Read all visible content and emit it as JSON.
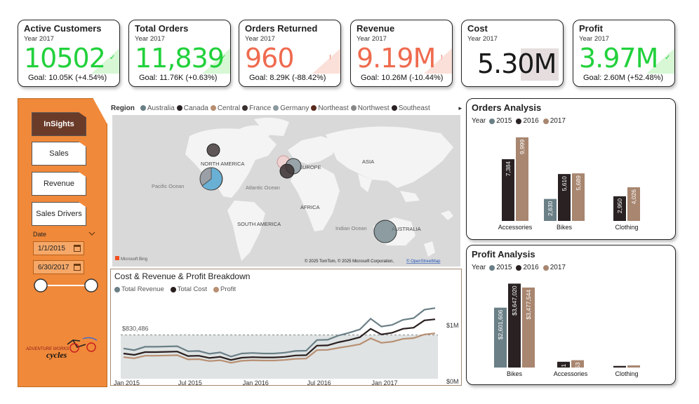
{
  "kpis": [
    {
      "title": "Active Customers",
      "year": "Year 2017",
      "value": "10502",
      "goal": "Goal: 10.05K (+4.54%)",
      "color": "#22d13c",
      "shade": "#d7f7d5",
      "mark": "✓"
    },
    {
      "title": "Total Orders",
      "year": "Year 2017",
      "value": "11,839",
      "goal": "Goal: 11.76K (+0.63%)",
      "color": "#22d13c",
      "shade": "#d7f7d5",
      "mark": "✓"
    },
    {
      "title": "Orders Returned",
      "year": "Year 2017",
      "value": "960",
      "goal": "Goal: 8.29K (-88.42%)",
      "color": "#ef6b4f",
      "shade": "#fbe0d9",
      "mark": "!"
    },
    {
      "title": "Revenue",
      "year": "Year 2017",
      "value": "9.19M",
      "goal": "Goal: 10.26M (-10.44%)",
      "color": "#ef6b4f",
      "shade": "#fbe0d9",
      "mark": "!"
    },
    {
      "title": "Cost",
      "year": "Year 2017",
      "value": "5.30M",
      "goal": "",
      "color": "#1a1a1a",
      "shade": "#e6dede",
      "mark": ""
    },
    {
      "title": "Profit",
      "year": "Year 2017",
      "value": "3.97M",
      "goal": "Goal: 2.60M (+52.48%)",
      "color": "#22d13c",
      "shade": "#d7f7d5",
      "mark": "✓"
    }
  ],
  "nav": {
    "items": [
      "InSights",
      "Sales",
      "Revenue",
      "Sales Drivers"
    ],
    "active": "InSights",
    "date_label": "Date",
    "start_date": "1/1/2015",
    "end_date": "6/30/2017",
    "logo_line1": "ADVENTURE WORKS",
    "logo_line2": "cycles"
  },
  "map": {
    "legend_title": "Region",
    "regions": [
      {
        "name": "Australia",
        "color": "#6a7f86"
      },
      {
        "name": "Canada",
        "color": "#2a2222"
      },
      {
        "name": "Central",
        "color": "#b88f72"
      },
      {
        "name": "France",
        "color": "#3a3030"
      },
      {
        "name": "Germany",
        "color": "#8c9aa0"
      },
      {
        "name": "Northeast",
        "color": "#5a2a1e"
      },
      {
        "name": "Northwest",
        "color": "#888888"
      },
      {
        "name": "Southeast",
        "color": "#2a2222"
      }
    ],
    "labels": {
      "north_america": "NORTH AMERICA",
      "europe": "EUROPE",
      "asia": "ASIA",
      "africa": "AFRICA",
      "south_america": "SOUTH AMERICA",
      "australia": "AUSTRALIA",
      "pacific": "Pacific Ocean",
      "atlantic": "Atlantic Ocean",
      "indian": "Indian Ocean"
    },
    "bing": "Microsoft Bing",
    "copyright": "© 2025 TomTom, © 2025 Microsoft Corporation,",
    "osm": "© OpenStreetMap"
  },
  "breakdown": {
    "title": "Cost & Revenue & Profit Breakdown",
    "series": [
      {
        "name": "Total Revenue",
        "color": "#6a7f86"
      },
      {
        "name": "Total Cost",
        "color": "#2a1f1f"
      },
      {
        "name": "Profit",
        "color": "#b88f72"
      }
    ],
    "reference_label": "$830,486",
    "y_labels": [
      "$1M",
      "$0M"
    ],
    "x_labels": [
      "Jan 2015",
      "Jul 2015",
      "Jan 2016",
      "Jul 2016",
      "Jan 2017"
    ]
  },
  "orders_analysis": {
    "title": "Orders Analysis",
    "year_label": "Year",
    "years": [
      {
        "name": "2015",
        "color": "#6a7f86"
      },
      {
        "name": "2016",
        "color": "#2a2222"
      },
      {
        "name": "2017",
        "color": "#a88670"
      }
    ]
  },
  "profit_analysis": {
    "title": "Profit Analysis",
    "year_label": "Year",
    "years": [
      {
        "name": "2015",
        "color": "#6a7f86"
      },
      {
        "name": "2016",
        "color": "#2a2222"
      },
      {
        "name": "2017",
        "color": "#a88670"
      }
    ]
  },
  "chart_data": [
    {
      "type": "bar",
      "title": "Orders Analysis",
      "categories": [
        "Accessories",
        "Bikes",
        "Clothing"
      ],
      "series": [
        {
          "name": "2015",
          "values": [
            null,
            2630,
            null
          ]
        },
        {
          "name": "2016",
          "values": [
            7384,
            5610,
            2950
          ]
        },
        {
          "name": "2017",
          "values": [
            9999,
            5689,
            4026
          ]
        }
      ],
      "labels": [
        [
          "",
          "7,384",
          "9,999"
        ],
        [
          "2,630",
          "5,610",
          "5,689"
        ],
        [
          "",
          "2,950",
          "4,026"
        ]
      ],
      "ylim": [
        0,
        10000
      ]
    },
    {
      "type": "bar",
      "title": "Profit Analysis",
      "categories": [
        "Bikes",
        "Accessories",
        "Clothing"
      ],
      "series": [
        {
          "name": "2015",
          "values": [
            2601606,
            null,
            null
          ]
        },
        {
          "name": "2016",
          "values": [
            3647020,
            250881,
            69123
          ]
        },
        {
          "name": "2017",
          "values": [
            3477544,
            318753,
            92655
          ]
        }
      ],
      "labels": [
        [
          "$2,601,606",
          "$3,647,020",
          "$3,477,544"
        ],
        [
          "",
          "$250,881",
          "$318,753"
        ],
        [
          "",
          "$69,123",
          "$92,655"
        ]
      ]
    },
    {
      "type": "line",
      "title": "Cost & Revenue & Profit Breakdown",
      "x": [
        "2015-01",
        "2015-02",
        "2015-03",
        "2015-04",
        "2015-05",
        "2015-06",
        "2015-07",
        "2015-08",
        "2015-09",
        "2015-10",
        "2015-11",
        "2015-12",
        "2016-01",
        "2016-02",
        "2016-03",
        "2016-04",
        "2016-05",
        "2016-06",
        "2016-07",
        "2016-08",
        "2016-09",
        "2016-10",
        "2016-11",
        "2016-12",
        "2017-01",
        "2017-02",
        "2017-03",
        "2017-04",
        "2017-05",
        "2017-06"
      ],
      "series": [
        {
          "name": "Total Revenue",
          "values": [
            590000,
            560000,
            620000,
            620000,
            625000,
            630000,
            540000,
            545000,
            495000,
            520000,
            445000,
            500000,
            510000,
            500000,
            500000,
            515000,
            545000,
            550000,
            740000,
            745000,
            820000,
            870000,
            930000,
            1120000,
            980000,
            1010000,
            1100000,
            1130000,
            1280000,
            1310000
          ]
        },
        {
          "name": "Total Cost",
          "values": [
            500000,
            475000,
            525000,
            525000,
            530000,
            535000,
            455000,
            460000,
            420000,
            440000,
            385000,
            425000,
            435000,
            430000,
            430000,
            440000,
            465000,
            470000,
            640000,
            645000,
            700000,
            740000,
            790000,
            940000,
            840000,
            870000,
            940000,
            960000,
            1090000,
            1110000
          ]
        },
        {
          "name": "Profit",
          "values": [
            435000,
            415000,
            460000,
            460000,
            465000,
            470000,
            395000,
            400000,
            365000,
            380000,
            335000,
            370000,
            380000,
            375000,
            375000,
            385000,
            405000,
            410000,
            560000,
            565000,
            600000,
            630000,
            665000,
            770000,
            690000,
            710000,
            760000,
            775000,
            840000,
            860000
          ]
        }
      ],
      "reference_line": 830486,
      "ylim": [
        0,
        1500000
      ]
    }
  ]
}
